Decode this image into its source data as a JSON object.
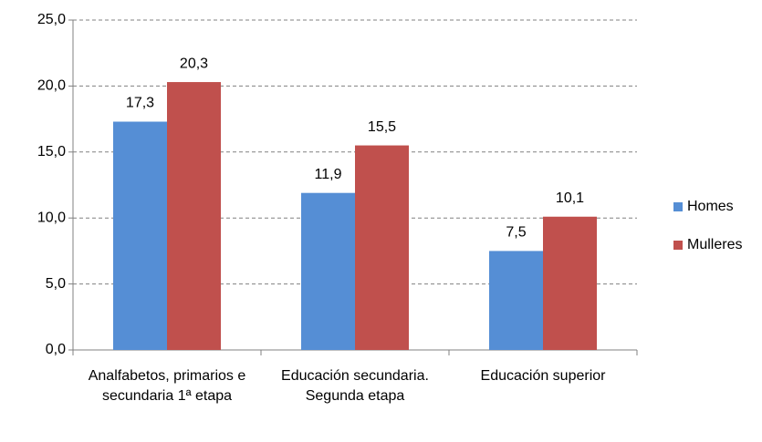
{
  "chart_data": {
    "type": "bar",
    "categories": [
      "Analfabetos, primarios e secundaria 1ª etapa",
      "Educación secundaria. Segunda etapa",
      "Educación superior"
    ],
    "series": [
      {
        "name": "Homes",
        "color": "#558ed5",
        "values": [
          17.3,
          11.9,
          7.5
        ],
        "value_labels": [
          "17,3",
          "11,9",
          "7,5"
        ]
      },
      {
        "name": "Mulleres",
        "color": "#c0504d",
        "values": [
          20.3,
          15.5,
          10.1
        ],
        "value_labels": [
          "20,3",
          "15,5",
          "10,1"
        ]
      }
    ],
    "ylim": [
      0,
      25
    ],
    "yticks": [
      {
        "value": 0,
        "label": "0,0"
      },
      {
        "value": 5,
        "label": "5,0"
      },
      {
        "value": 10,
        "label": "10,0"
      },
      {
        "value": 15,
        "label": "15,0"
      },
      {
        "value": 20,
        "label": "20,0"
      },
      {
        "value": 25,
        "label": "25,0"
      }
    ],
    "grid": true,
    "legend": "right"
  }
}
